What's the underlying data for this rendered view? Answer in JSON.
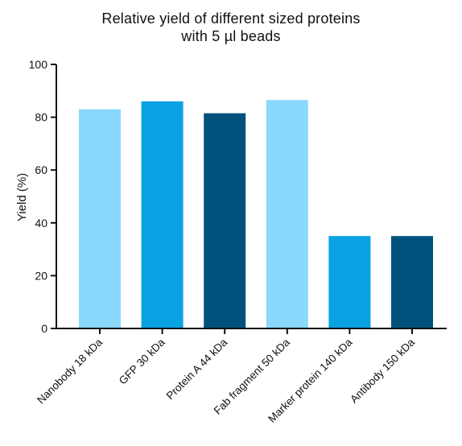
{
  "chart_data": {
    "type": "bar",
    "title_lines": [
      "Relative yield of different sized proteins",
      "with 5 µl beads"
    ],
    "xlabel": "",
    "ylabel": "Yield (%)",
    "ylim": [
      0,
      100
    ],
    "yticks": [
      0,
      20,
      40,
      60,
      80,
      100
    ],
    "grid": false,
    "legend": "none",
    "categories": [
      "Nanobody 18 kDa",
      "GFP 30 kDa",
      "Protein A 44 kDa",
      "Fab fragment 50 kDa",
      "Marker protein 140 kDa",
      "Antibody 150 kDa"
    ],
    "values": [
      83,
      86,
      81.5,
      86.5,
      35,
      35
    ],
    "bar_colors": [
      "#8ad8fb",
      "#0aa1e3",
      "#00527c",
      "#8ad8fb",
      "#0aa1e3",
      "#00527c"
    ],
    "axis_color": "#111111"
  }
}
